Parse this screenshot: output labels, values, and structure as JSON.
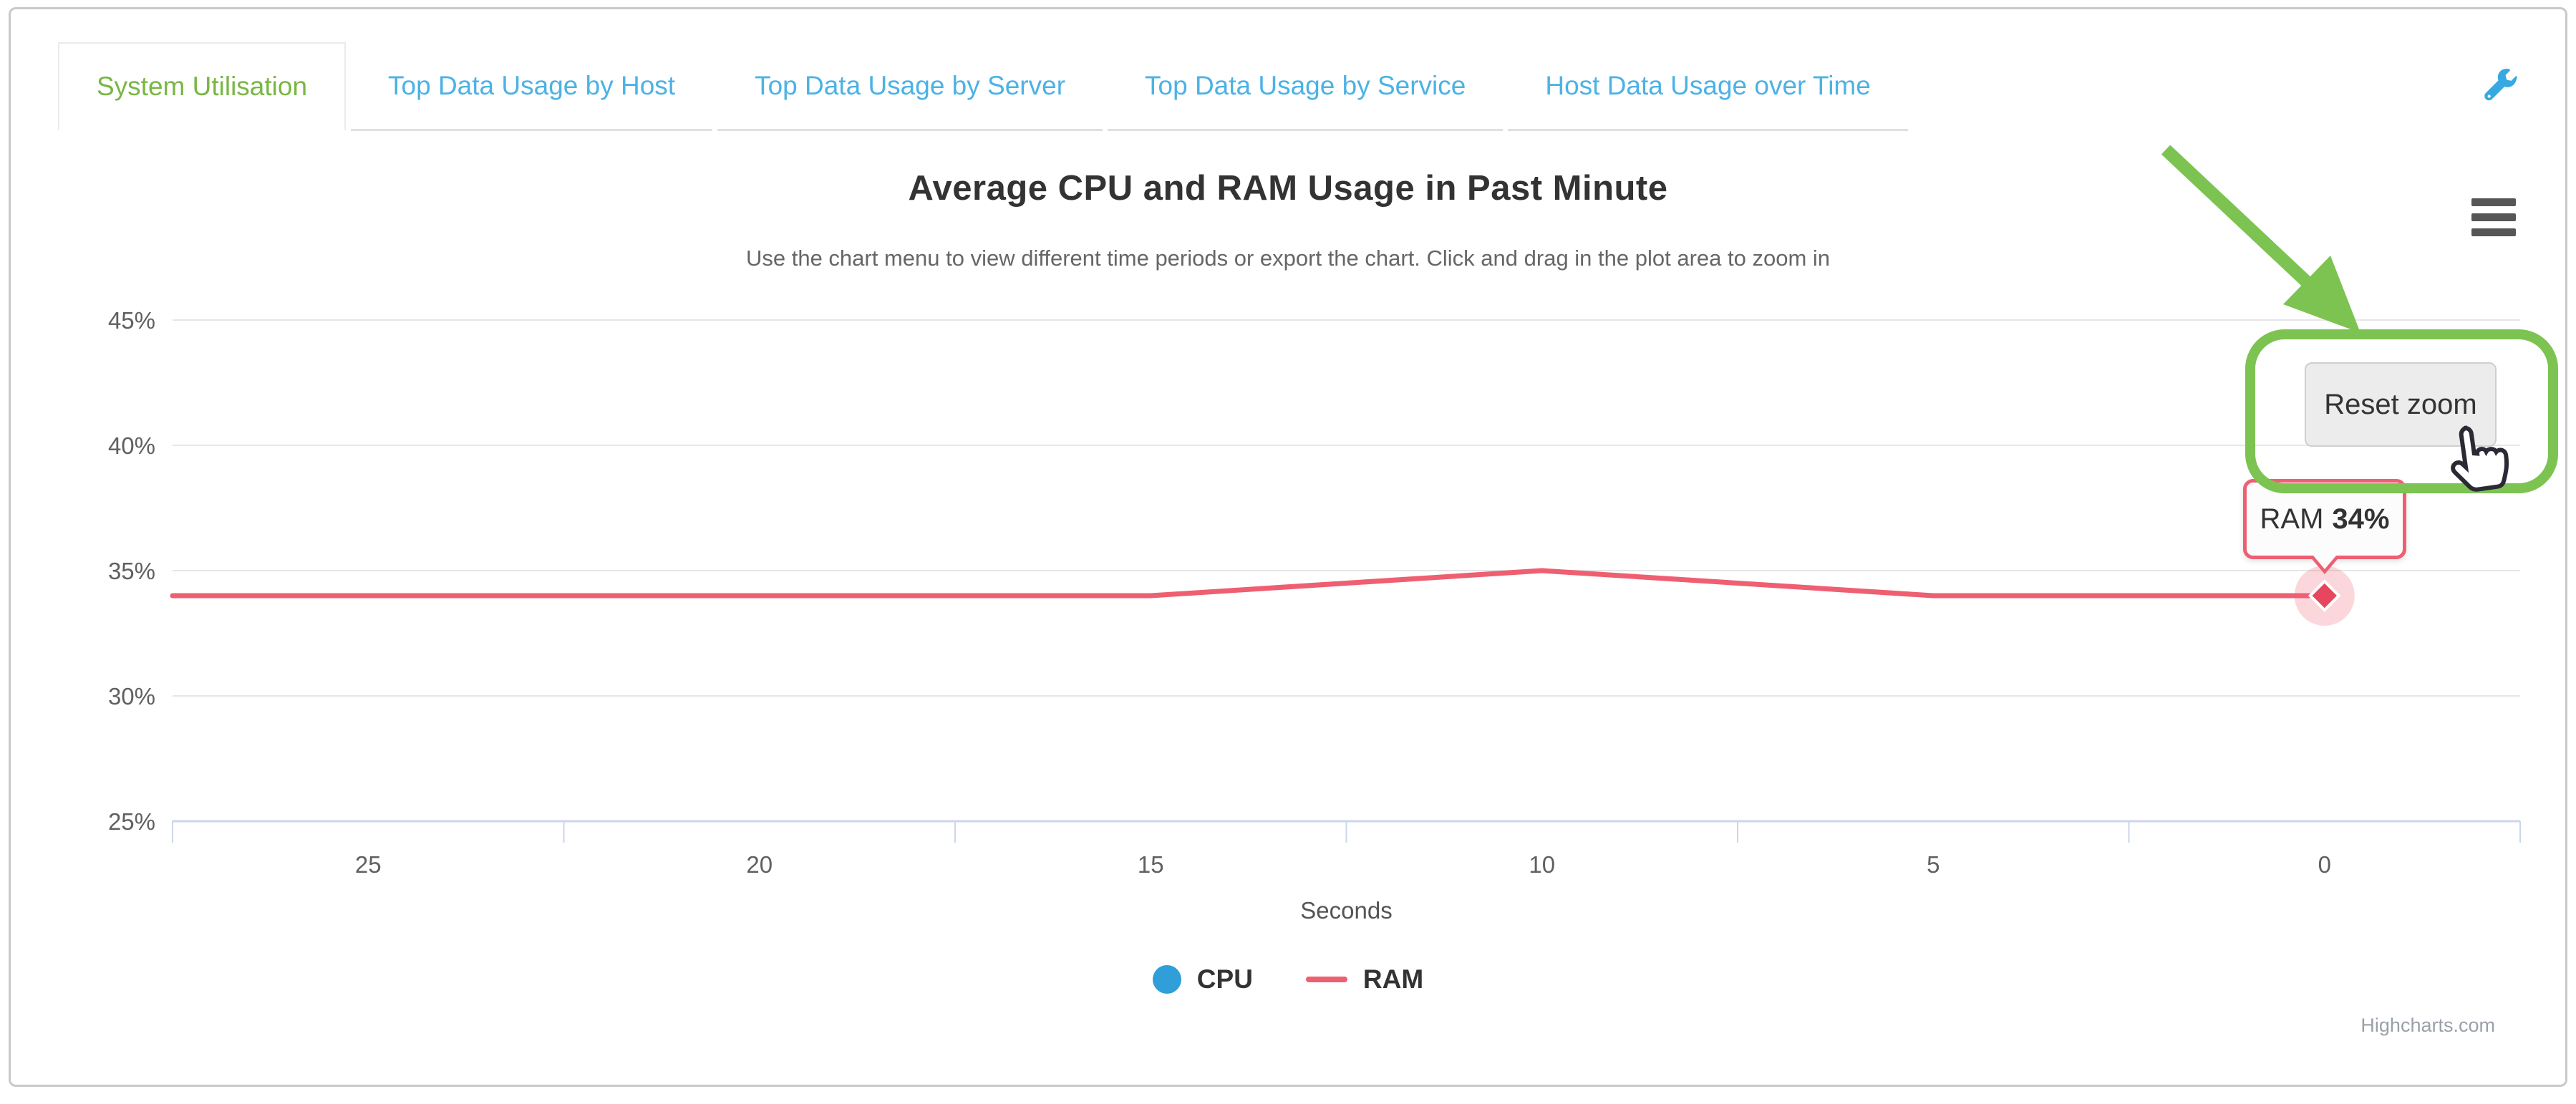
{
  "tabs": [
    {
      "label": "System Utilisation",
      "active": true
    },
    {
      "label": "Top Data Usage by Host",
      "active": false
    },
    {
      "label": "Top Data Usage by Server",
      "active": false
    },
    {
      "label": "Top Data Usage by Service",
      "active": false
    },
    {
      "label": "Host Data Usage over Time",
      "active": false
    }
  ],
  "header": {
    "title": "Average CPU and RAM Usage in Past Minute",
    "subtitle": "Use the chart menu to view different time periods or export the chart. Click and drag in the plot area to zoom in"
  },
  "controls": {
    "reset_zoom_label": "Reset zoom",
    "context_menu_icon": "hamburger-icon",
    "settings_icon": "wrench-icon"
  },
  "tooltip": {
    "series": "RAM",
    "value": "34%"
  },
  "credits": "Highcharts.com",
  "colors": {
    "tab_active_green": "#79b644",
    "tab_link_blue": "#4cb2e5",
    "wrench_blue": "#36a9e1",
    "grid_line": "#e6e6e6",
    "axis_line": "#ccd6eb",
    "axis_label": "#606060",
    "cpu_blue": "#2f9ed9",
    "ram_red": "#ee5f72",
    "ram_marker_red": "#e6475f",
    "annotation_green": "#7cc351",
    "card_border": "#c9c9c9"
  },
  "chart_data": {
    "type": "line",
    "title": "Average CPU and RAM Usage in Past Minute",
    "subtitle": "Use the chart menu to view different time periods or export the chart. Click and drag in the plot area to zoom in",
    "xlabel": "Seconds",
    "ylabel": "",
    "x_reversed": true,
    "xlim": [
      27.5,
      -2.5
    ],
    "ylim": [
      25,
      45
    ],
    "grid": true,
    "zoomed": true,
    "legend_position": "bottom-center",
    "yticks": [
      {
        "v": 45,
        "label": "45%"
      },
      {
        "v": 40,
        "label": "40%"
      },
      {
        "v": 35,
        "label": "35%"
      },
      {
        "v": 30,
        "label": "30%"
      },
      {
        "v": 25,
        "label": "25%"
      }
    ],
    "xticks": [
      {
        "v": 25,
        "label": "25"
      },
      {
        "v": 20,
        "label": "20"
      },
      {
        "v": 15,
        "label": "15"
      },
      {
        "v": 10,
        "label": "10"
      },
      {
        "v": 5,
        "label": "5"
      },
      {
        "v": 0,
        "label": "0"
      }
    ],
    "tickmark_positions": [
      27.5,
      22.5,
      17.5,
      12.5,
      7.5,
      2.5,
      -2.5
    ],
    "series": [
      {
        "name": "CPU",
        "color": "#2f9ed9",
        "legend_marker": "circle",
        "points": [],
        "note": "CPU series not visible inside the zoomed 25-45% y-range; only its legend entry is shown"
      },
      {
        "name": "RAM",
        "color": "#ee5f72",
        "marker_color": "#e6475f",
        "legend_marker": "line",
        "points": [
          [
            27.5,
            34
          ],
          [
            25,
            34
          ],
          [
            20,
            34
          ],
          [
            15,
            34
          ],
          [
            10,
            35
          ],
          [
            5,
            34
          ],
          [
            0,
            34
          ]
        ],
        "note": "flat at 34% with a single bump to 35% at 10 s; line starts at the left plot edge and ends at 0 s"
      }
    ],
    "hover_point": {
      "series": "RAM",
      "x": 0,
      "y": 34
    }
  }
}
